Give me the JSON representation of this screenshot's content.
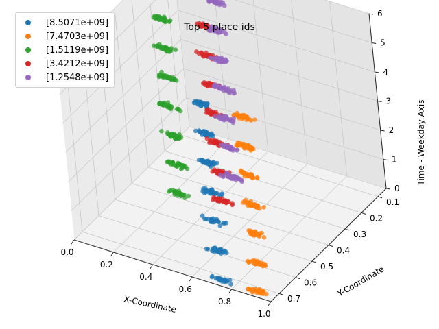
{
  "chart_data": {
    "type": "scatter",
    "title": "Top 5 place ids",
    "xlabel": "X-Coordinate",
    "ylabel": "Y-Coordinate",
    "zlabel": "Time - Weekday Axis",
    "x_ticks": [
      "0.0",
      "0.2",
      "0.4",
      "0.6",
      "0.8",
      "1.0"
    ],
    "y_ticks": [
      "0.1",
      "0.2",
      "0.3",
      "0.4",
      "0.5",
      "0.6",
      "0.7"
    ],
    "z_ticks": [
      "0",
      "1",
      "2",
      "3",
      "4",
      "5",
      "6"
    ],
    "xlim": [
      0.0,
      1.0
    ],
    "ylim": [
      0.05,
      0.75
    ],
    "zlim": [
      0,
      6
    ],
    "grid": true,
    "legend_position": "top-left",
    "series": [
      {
        "name": "[8.5071e+09]",
        "color": "#1f77b4",
        "x": 0.72,
        "y": 0.72,
        "weekdays": [
          0,
          1,
          2,
          3,
          4,
          5,
          6
        ]
      },
      {
        "name": "[7.4703e+09]",
        "color": "#ff7f0e",
        "x": 0.92,
        "y": 0.72,
        "weekdays": [
          0,
          1,
          2,
          3,
          4,
          5,
          6
        ]
      },
      {
        "name": "[1.5119e+09]",
        "color": "#2ca02c",
        "x": 0.22,
        "y": 0.38,
        "weekdays": [
          0,
          1,
          2,
          3,
          4,
          5,
          6
        ]
      },
      {
        "name": "[3.4212e+09]",
        "color": "#d62728",
        "x": 0.42,
        "y": 0.35,
        "weekdays": [
          0,
          1,
          2,
          3,
          4,
          5,
          6
        ]
      },
      {
        "name": "[1.2548e+09]",
        "color": "#9467bd",
        "x": 0.36,
        "y": 0.22,
        "weekdays": [
          0,
          1,
          2,
          3,
          4,
          5,
          6
        ]
      }
    ]
  }
}
